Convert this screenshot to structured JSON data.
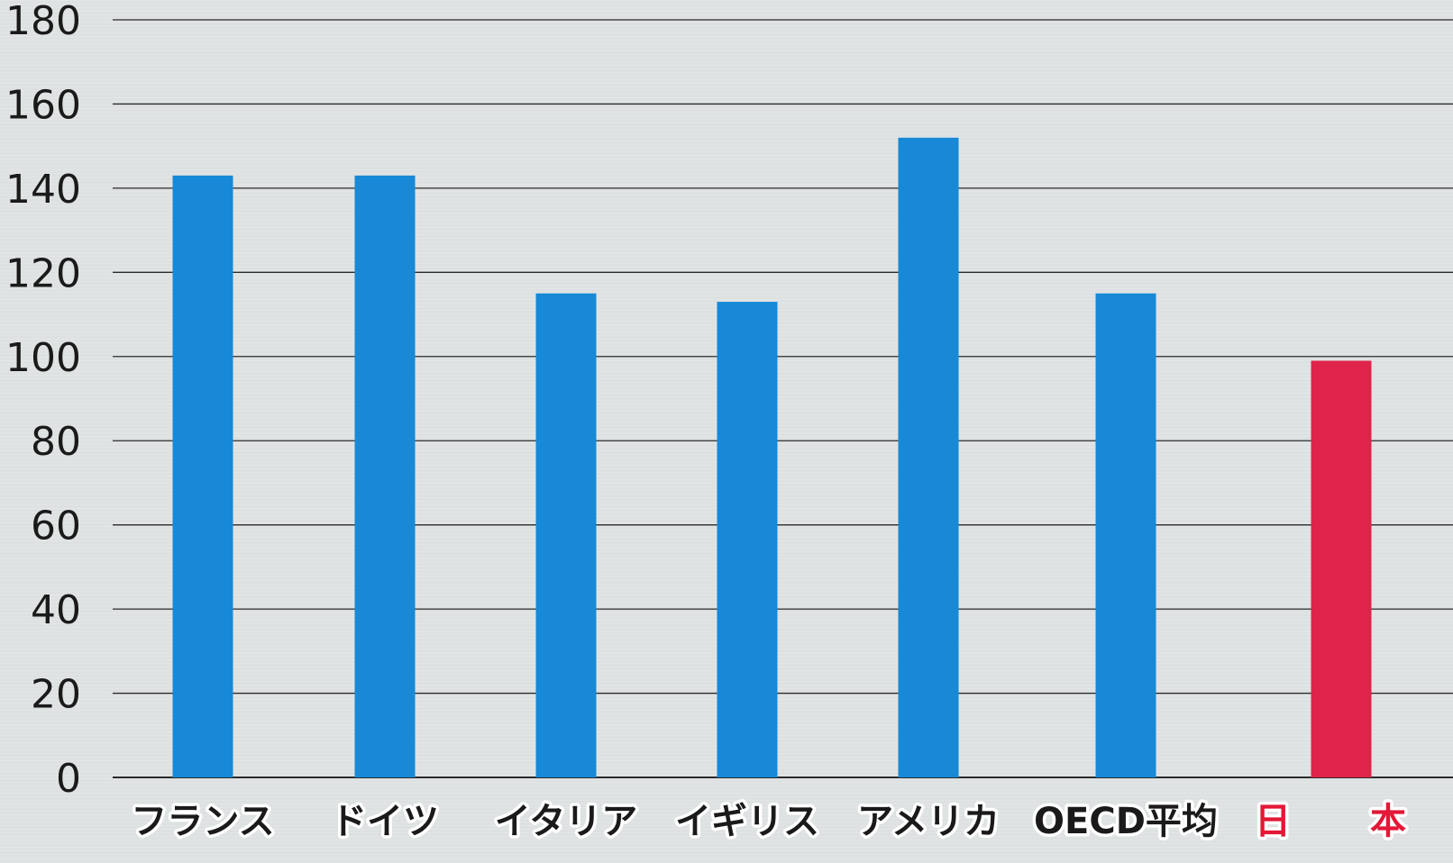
{
  "chart_data": {
    "type": "bar",
    "categories": [
      "フランス",
      "ドイツ",
      "イタリア",
      "イギリス",
      "アメリカ",
      "OECD平均",
      "日　本"
    ],
    "values": [
      143,
      143,
      115,
      113,
      152,
      115,
      99
    ],
    "ylim": [
      0,
      180
    ],
    "yticks": [
      0,
      20,
      40,
      60,
      80,
      100,
      120,
      140,
      160,
      180
    ],
    "grid": true,
    "bar_colors": [
      "#1789d6",
      "#1789d6",
      "#1789d6",
      "#1789d6",
      "#1789d6",
      "#1789d6",
      "#e0234a"
    ],
    "highlight_category": "日　本",
    "highlight_color": "#e21836"
  }
}
